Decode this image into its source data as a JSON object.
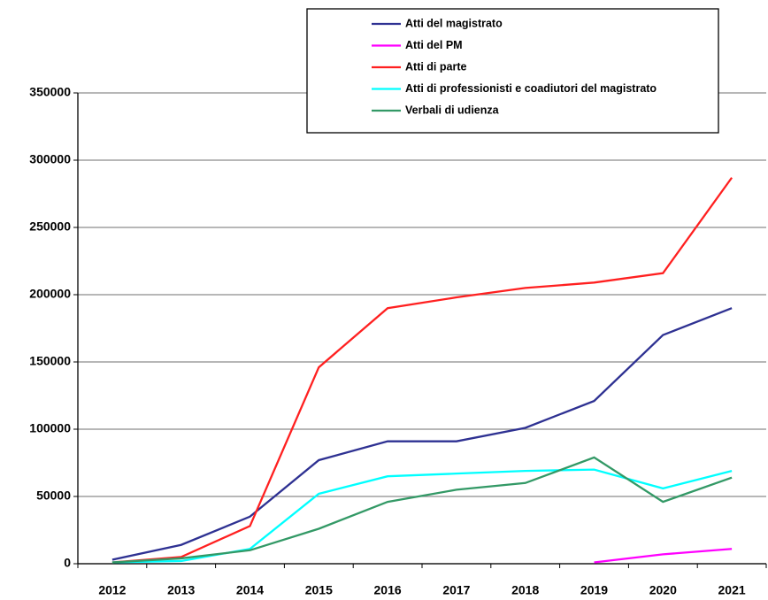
{
  "chart_data": {
    "type": "line",
    "categories": [
      "2012",
      "2013",
      "2014",
      "2015",
      "2016",
      "2017",
      "2018",
      "2019",
      "2020",
      "2021"
    ],
    "series": [
      {
        "name": "Atti del magistrato",
        "color": "#2e3192",
        "values": [
          3000,
          14000,
          35000,
          77000,
          91000,
          91000,
          101000,
          121000,
          170000,
          190000
        ]
      },
      {
        "name": "Atti del PM",
        "color": "#ff00ff",
        "values": [
          null,
          null,
          null,
          null,
          null,
          null,
          null,
          1000,
          7000,
          11000
        ]
      },
      {
        "name": "Atti di parte",
        "color": "#ff2020",
        "values": [
          1000,
          5000,
          28000,
          146000,
          190000,
          198000,
          205000,
          209000,
          216000,
          287000
        ]
      },
      {
        "name": "Atti di professionisti e coadiutori del magistrato",
        "color": "#00ffff",
        "values": [
          1000,
          2000,
          11000,
          52000,
          65000,
          67000,
          69000,
          70000,
          56000,
          69000
        ]
      },
      {
        "name": "Verbali di udienza",
        "color": "#339966",
        "values": [
          1000,
          4000,
          10000,
          26000,
          46000,
          55000,
          60000,
          79000,
          46000,
          64000
        ]
      }
    ],
    "ylim": [
      0,
      350000
    ],
    "yticks": [
      0,
      50000,
      100000,
      150000,
      200000,
      250000,
      300000,
      350000
    ],
    "grid": true,
    "legend": "top"
  }
}
